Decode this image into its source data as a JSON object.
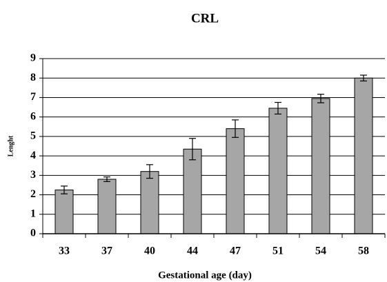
{
  "chart_data": {
    "type": "bar",
    "title": "CRL",
    "x_label": "Gestational age (day)",
    "y_label": "Lenght",
    "categories": [
      "33",
      "37",
      "40",
      "44",
      "47",
      "51",
      "54",
      "58"
    ],
    "values": [
      2.25,
      2.8,
      3.2,
      4.35,
      5.4,
      6.45,
      6.95,
      8.0
    ],
    "errors": [
      0.2,
      0.12,
      0.35,
      0.55,
      0.45,
      0.3,
      0.22,
      0.15
    ],
    "color": "#a6a6a6",
    "ylim": [
      0,
      9
    ],
    "yticks": [
      0,
      1,
      2,
      3,
      4,
      5,
      6,
      7,
      8,
      9
    ],
    "grid": true
  }
}
